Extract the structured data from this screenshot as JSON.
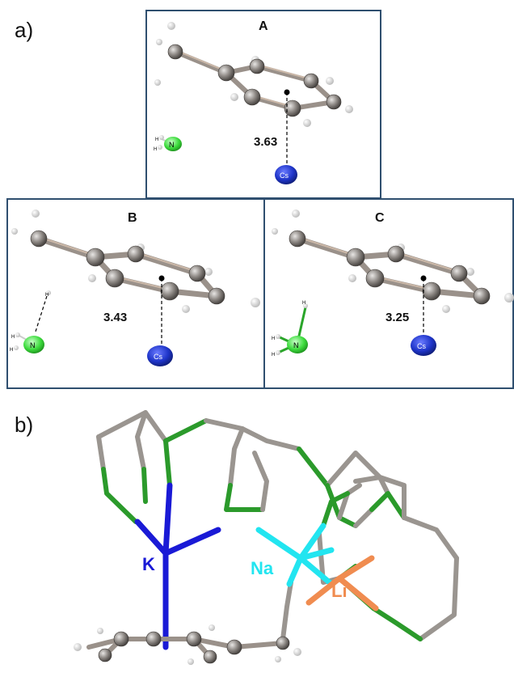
{
  "panel_a_label": "a)",
  "panel_b_label": "b)",
  "boxes": [
    {
      "title": "A",
      "distance": "3.63"
    },
    {
      "title": "B",
      "distance": "3.43"
    },
    {
      "title": "C",
      "distance": "3.25"
    }
  ],
  "atom_labels": {
    "cs": "Cs",
    "n": "N",
    "h": "H"
  },
  "metal_labels": {
    "k": "K",
    "na": "Na",
    "li": "Li"
  },
  "colors": {
    "frame": "#2f4f6f",
    "carbon": "#8f8a86",
    "cesium": "#1f35c9",
    "nitrogen": "#3ddc3d",
    "potassium": "#1a1ad6",
    "sodium": "#22e5f0",
    "lithium": "#f08c50",
    "n_bond": "#2aa52a"
  }
}
